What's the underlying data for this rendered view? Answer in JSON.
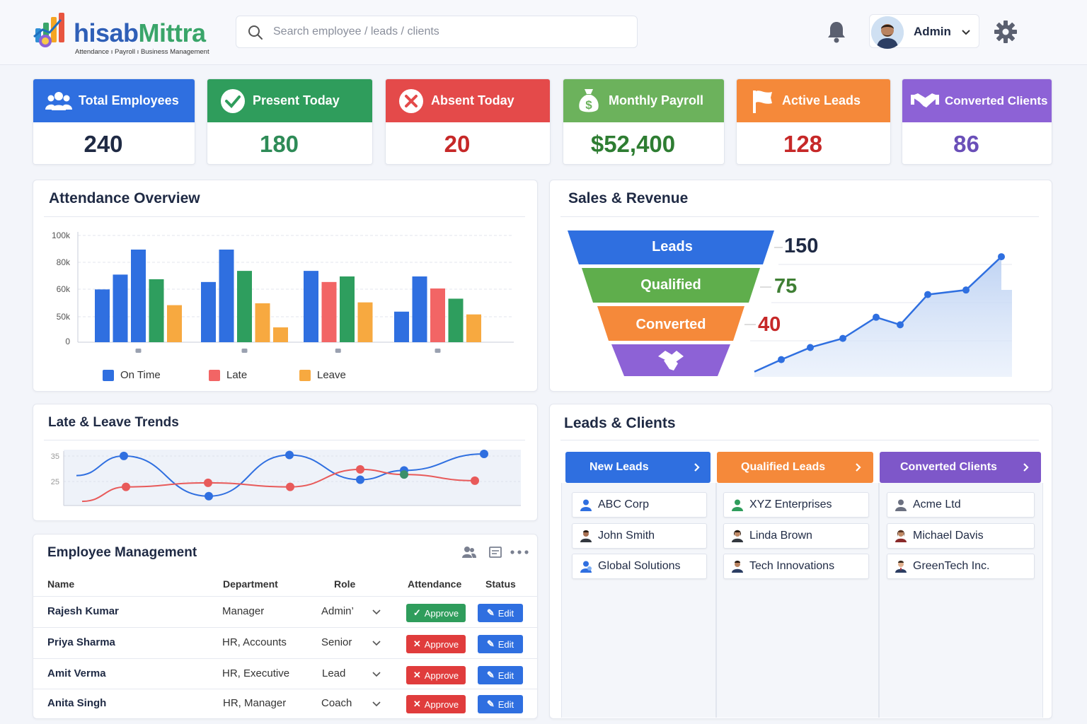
{
  "brand": {
    "name_a": "hisab",
    "name_b": "Mittra",
    "tagline": "Attendance ı Payroll ı Business Management"
  },
  "search": {
    "placeholder": "Search employee / leads / clients"
  },
  "user": {
    "name": "Admin"
  },
  "kpis": [
    {
      "label": "Total Employees",
      "value": "240",
      "color": "#2f6fe0",
      "value_color": "#1f2a44",
      "icon": "users-icon"
    },
    {
      "label": "Present Today",
      "value": "180",
      "color": "#2f9d5c",
      "value_color": "#2e8b57",
      "icon": "check-circle-icon"
    },
    {
      "label": "Absent Today",
      "value": "20",
      "color": "#e44a4a",
      "value_color": "#c62828",
      "icon": "x-circle-icon"
    },
    {
      "label": "Monthly Payroll",
      "value": "$52,400",
      "color": "#6cb25c",
      "value_color": "#2e7d32",
      "icon": "money-bag-icon"
    },
    {
      "label": "Active Leads",
      "value": "128",
      "color": "#f5893a",
      "value_color": "#c62828",
      "icon": "flag-icon"
    },
    {
      "label": "Converted Clients",
      "value": "86",
      "color": "#8d62d6",
      "value_color": "#6a4fb8",
      "icon": "handshake-icon"
    }
  ],
  "attendance": {
    "title": "Attendance Overview",
    "legend": [
      {
        "label": "On Time",
        "color": "#2f6fe0"
      },
      {
        "label": "Late",
        "color": "#f26565"
      },
      {
        "label": "Leave",
        "color": "#f7a940"
      }
    ]
  },
  "chart_data": [
    {
      "type": "bar",
      "title": "Attendance Overview",
      "y_ticks": [
        "100k",
        "80k",
        "60k",
        "50k",
        "0"
      ],
      "groups": [
        {
          "values": [
            57,
            73,
            100,
            68,
            40
          ],
          "colors": [
            "#2f6fe0",
            "#2f6fe0",
            "#2f6fe0",
            "#2e9e5e",
            "#f7a940"
          ]
        },
        {
          "values": [
            65,
            100,
            77,
            42,
            16
          ],
          "colors": [
            "#2f6fe0",
            "#2f6fe0",
            "#2e9e5e",
            "#f7a940",
            "#f7a940"
          ]
        },
        {
          "values": [
            77,
            65,
            71,
            43
          ],
          "colors": [
            "#2f6fe0",
            "#f26565",
            "#2e9e5e",
            "#f7a940"
          ]
        },
        {
          "values": [
            33,
            71,
            58,
            47,
            30
          ],
          "colors": [
            "#2f6fe0",
            "#2f6fe0",
            "#f26565",
            "#2e9e5e",
            "#f7a940"
          ]
        }
      ]
    },
    {
      "type": "line",
      "title": "Late & Leave Trends",
      "y_ticks": [
        "35",
        "25"
      ],
      "series": [
        {
          "color": "#2f6fe0",
          "points": [
            [
              0,
              25.5
            ],
            [
              1,
              35
            ],
            [
              2,
              15.5
            ],
            [
              3,
              35.5
            ],
            [
              4,
              23.5
            ],
            [
              5,
              28
            ],
            [
              6,
              36
            ]
          ]
        },
        {
          "color": "#e85a5a",
          "points": [
            [
              0,
              13
            ],
            [
              1,
              20
            ],
            [
              2,
              22
            ],
            [
              3,
              20
            ],
            [
              4,
              28.5
            ],
            [
              5,
              26
            ],
            [
              6,
              23
            ]
          ]
        }
      ]
    },
    {
      "type": "area",
      "title": "Sales & Revenue",
      "points": [
        2,
        10,
        18,
        24,
        38,
        33,
        53,
        56,
        78
      ]
    }
  ],
  "funnel": {
    "title": "Sales & Revenue",
    "stages": [
      {
        "label": "Leads",
        "value": "150",
        "color": "#2f6fe0",
        "value_color": "#1f2a44"
      },
      {
        "label": "Qualified",
        "value": "75",
        "color": "#5fae4c",
        "value_color": "#3f7f34"
      },
      {
        "label": "Converted",
        "value": "40",
        "color": "#f5893a",
        "value_color": "#c62828"
      }
    ]
  },
  "trends": {
    "title": "Late & Leave Trends"
  },
  "leads": {
    "title": "Leads & Clients",
    "columns": [
      {
        "label": "New Leads",
        "color": "#2f6fe0",
        "items": [
          "ABC Corp",
          "John Smith",
          "Global Solutions"
        ]
      },
      {
        "label": "Qualified Leads",
        "color": "#f5893a",
        "items": [
          "XYZ Enterprises",
          "Linda Brown",
          "Tech Innovations"
        ]
      },
      {
        "label": "Converted Clients",
        "color": "#7e57c9",
        "items": [
          "Acme Ltd",
          "Michael Davis",
          "GreenTech Inc."
        ]
      }
    ]
  },
  "employees": {
    "title": "Employee Management",
    "headers": {
      "name": "Name",
      "department": "Department",
      "role": "Role",
      "attendance": "Attendance",
      "status": "Status"
    },
    "rows": [
      {
        "name": "Rajesh Kumar",
        "department": "Manager",
        "role": "Admin’",
        "approve": "Approve",
        "approved": true,
        "edit": "Edit"
      },
      {
        "name": "Priya Sharma",
        "department": "HR, Accounts",
        "role": "Senior",
        "approve": "Approve",
        "approved": false,
        "edit": "Edit"
      },
      {
        "name": "Amit Verma",
        "department": "HR, Executive",
        "role": "Lead",
        "approve": "Approve",
        "approved": false,
        "edit": "Edit"
      },
      {
        "name": "Anita Singh",
        "department": "HR, Manager",
        "role": "Coach",
        "approve": "Approve",
        "approved": false,
        "edit": "Edit"
      }
    ]
  }
}
